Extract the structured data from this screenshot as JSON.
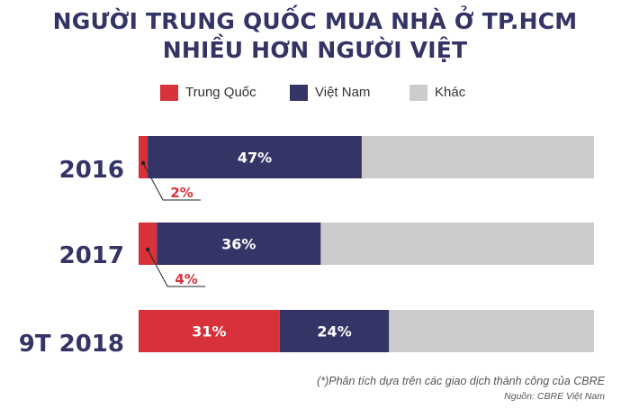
{
  "title": {
    "line1": "NGƯỜI TRUNG QUỐC MUA NHÀ Ở TP.HCM",
    "line2": "NHIỀU HƠN NGƯỜI VIỆT"
  },
  "legend": [
    {
      "label": "Trung Quốc",
      "color": "#d7313a"
    },
    {
      "label": "Việt Nam",
      "color": "#343466"
    },
    {
      "label": "Khác",
      "color": "#cccccc"
    }
  ],
  "chart_data": {
    "type": "bar",
    "orientation": "horizontal",
    "stacked": true,
    "categories": [
      "2016",
      "2017",
      "9T 2018"
    ],
    "series": [
      {
        "name": "Trung Quốc",
        "color": "#d7313a",
        "values": [
          2,
          4,
          31
        ]
      },
      {
        "name": "Việt Nam",
        "color": "#343466",
        "values": [
          47,
          36,
          24
        ]
      },
      {
        "name": "Khác",
        "color": "#cccccc",
        "values": [
          51,
          60,
          45
        ]
      }
    ],
    "data_labels": [
      {
        "Trung Quốc": "2%",
        "Việt Nam": "47%",
        "Khác": ""
      },
      {
        "Trung Quốc": "4%",
        "Việt Nam": "36%",
        "Khác": ""
      },
      {
        "Trung Quốc": "31%",
        "Việt Nam": "24%",
        "Khác": ""
      }
    ],
    "xlim": [
      0,
      100
    ],
    "legend_position": "top",
    "grid": false
  },
  "footnotes": {
    "analysis": "(*)Phân tích dựa trên các giao dịch thành công của CBRE",
    "source": "Nguồn: CBRE Việt Nam"
  }
}
